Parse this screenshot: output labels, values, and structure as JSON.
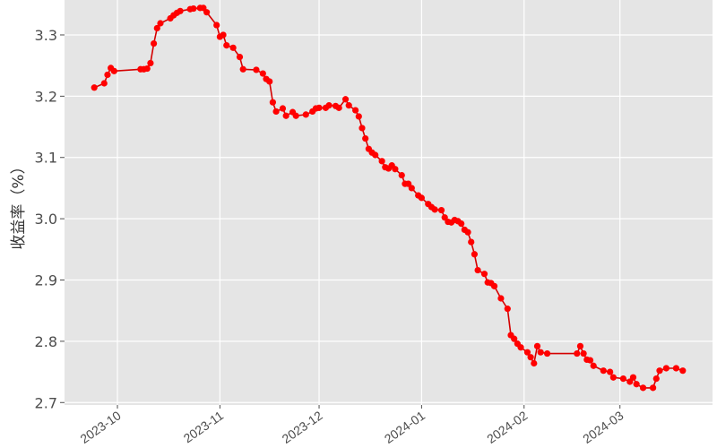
{
  "chart_data": {
    "type": "line",
    "title": "",
    "xlabel": "",
    "ylabel": "收益率（%）",
    "xlim": [
      "2023-09-15",
      "2024-03-29"
    ],
    "ylim": [
      2.696,
      3.357
    ],
    "grid": true,
    "background": "#E5E5E5",
    "series_color": "#FF0000",
    "y_ticks": [
      2.7,
      2.8,
      2.9,
      3.0,
      3.1,
      3.2,
      3.3
    ],
    "y_tick_labels": [
      "2.7",
      "2.8",
      "2.9",
      "3.0",
      "3.1",
      "3.2",
      "3.3"
    ],
    "x_ticks": [
      "2023-10-01",
      "2023-11-01",
      "2023-12-01",
      "2024-01-01",
      "2024-02-01",
      "2024-03-01"
    ],
    "x_tick_labels": [
      "2023-10",
      "2023-11",
      "2023-12",
      "2024-01",
      "2024-02",
      "2024-03"
    ],
    "points": [
      [
        "2023-09-24",
        3.214
      ],
      [
        "2023-09-27",
        3.221
      ],
      [
        "2023-09-28",
        3.235
      ],
      [
        "2023-09-29",
        3.246
      ],
      [
        "2023-09-30",
        3.241
      ],
      [
        "2023-10-08",
        3.244
      ],
      [
        "2023-10-09",
        3.244
      ],
      [
        "2023-10-10",
        3.245
      ],
      [
        "2023-10-11",
        3.254
      ],
      [
        "2023-10-12",
        3.286
      ],
      [
        "2023-10-13",
        3.311
      ],
      [
        "2023-10-14",
        3.319
      ],
      [
        "2023-10-17",
        3.327
      ],
      [
        "2023-10-18",
        3.332
      ],
      [
        "2023-10-19",
        3.336
      ],
      [
        "2023-10-20",
        3.339
      ],
      [
        "2023-10-23",
        3.342
      ],
      [
        "2023-10-24",
        3.343
      ],
      [
        "2023-10-26",
        3.344
      ],
      [
        "2023-10-27",
        3.344
      ],
      [
        "2023-10-28",
        3.337
      ],
      [
        "2023-10-31",
        3.316
      ],
      [
        "2023-11-01",
        3.297
      ],
      [
        "2023-11-02",
        3.3
      ],
      [
        "2023-11-03",
        3.283
      ],
      [
        "2023-11-05",
        3.279
      ],
      [
        "2023-11-07",
        3.264
      ],
      [
        "2023-11-08",
        3.244
      ],
      [
        "2023-11-12",
        3.243
      ],
      [
        "2023-11-14",
        3.237
      ],
      [
        "2023-11-15",
        3.228
      ],
      [
        "2023-11-16",
        3.224
      ],
      [
        "2023-11-17",
        3.19
      ],
      [
        "2023-11-18",
        3.175
      ],
      [
        "2023-11-20",
        3.18
      ],
      [
        "2023-11-21",
        3.168
      ],
      [
        "2023-11-23",
        3.174
      ],
      [
        "2023-11-24",
        3.168
      ],
      [
        "2023-11-27",
        3.17
      ],
      [
        "2023-11-29",
        3.175
      ],
      [
        "2023-11-30",
        3.18
      ],
      [
        "2023-12-01",
        3.181
      ],
      [
        "2023-12-03",
        3.181
      ],
      [
        "2023-12-04",
        3.185
      ],
      [
        "2023-12-06",
        3.184
      ],
      [
        "2023-12-07",
        3.181
      ],
      [
        "2023-12-09",
        3.195
      ],
      [
        "2023-12-10",
        3.185
      ],
      [
        "2023-12-12",
        3.177
      ],
      [
        "2023-12-13",
        3.167
      ],
      [
        "2023-12-14",
        3.148
      ],
      [
        "2023-12-15",
        3.131
      ],
      [
        "2023-12-16",
        3.114
      ],
      [
        "2023-12-17",
        3.108
      ],
      [
        "2023-12-18",
        3.104
      ],
      [
        "2023-12-20",
        3.094
      ],
      [
        "2023-12-21",
        3.084
      ],
      [
        "2023-12-22",
        3.082
      ],
      [
        "2023-12-23",
        3.087
      ],
      [
        "2023-12-24",
        3.081
      ],
      [
        "2023-12-26",
        3.071
      ],
      [
        "2023-12-27",
        3.057
      ],
      [
        "2023-12-28",
        3.057
      ],
      [
        "2023-12-29",
        3.05
      ],
      [
        "2023-12-31",
        3.038
      ],
      [
        "2024-01-01",
        3.034
      ],
      [
        "2024-01-03",
        3.024
      ],
      [
        "2024-01-04",
        3.019
      ],
      [
        "2024-01-05",
        3.015
      ],
      [
        "2024-01-07",
        3.014
      ],
      [
        "2024-01-08",
        3.002
      ],
      [
        "2024-01-09",
        2.995
      ],
      [
        "2024-01-10",
        2.994
      ],
      [
        "2024-01-11",
        2.998
      ],
      [
        "2024-01-12",
        2.996
      ],
      [
        "2024-01-13",
        2.992
      ],
      [
        "2024-01-14",
        2.982
      ],
      [
        "2024-01-15",
        2.978
      ],
      [
        "2024-01-16",
        2.962
      ],
      [
        "2024-01-17",
        2.942
      ],
      [
        "2024-01-18",
        2.916
      ],
      [
        "2024-01-20",
        2.91
      ],
      [
        "2024-01-21",
        2.896
      ],
      [
        "2024-01-22",
        2.895
      ],
      [
        "2024-01-23",
        2.89
      ],
      [
        "2024-01-25",
        2.87
      ],
      [
        "2024-01-27",
        2.853
      ],
      [
        "2024-01-28",
        2.81
      ],
      [
        "2024-01-29",
        2.804
      ],
      [
        "2024-01-30",
        2.796
      ],
      [
        "2024-01-31",
        2.79
      ],
      [
        "2024-02-02",
        2.782
      ],
      [
        "2024-02-03",
        2.774
      ],
      [
        "2024-02-04",
        2.764
      ],
      [
        "2024-02-05",
        2.792
      ],
      [
        "2024-02-06",
        2.782
      ],
      [
        "2024-02-08",
        2.78
      ],
      [
        "2024-02-17",
        2.78
      ],
      [
        "2024-02-18",
        2.792
      ],
      [
        "2024-02-19",
        2.78
      ],
      [
        "2024-02-20",
        2.77
      ],
      [
        "2024-02-21",
        2.769
      ],
      [
        "2024-02-22",
        2.76
      ],
      [
        "2024-02-25",
        2.752
      ],
      [
        "2024-02-27",
        2.75
      ],
      [
        "2024-02-28",
        2.741
      ],
      [
        "2024-03-02",
        2.739
      ],
      [
        "2024-03-04",
        2.734
      ],
      [
        "2024-03-05",
        2.741
      ],
      [
        "2024-03-06",
        2.73
      ],
      [
        "2024-03-08",
        2.724
      ],
      [
        "2024-03-11",
        2.724
      ],
      [
        "2024-03-12",
        2.739
      ],
      [
        "2024-03-13",
        2.752
      ],
      [
        "2024-03-15",
        2.756
      ],
      [
        "2024-03-18",
        2.756
      ],
      [
        "2024-03-20",
        2.752
      ]
    ]
  }
}
